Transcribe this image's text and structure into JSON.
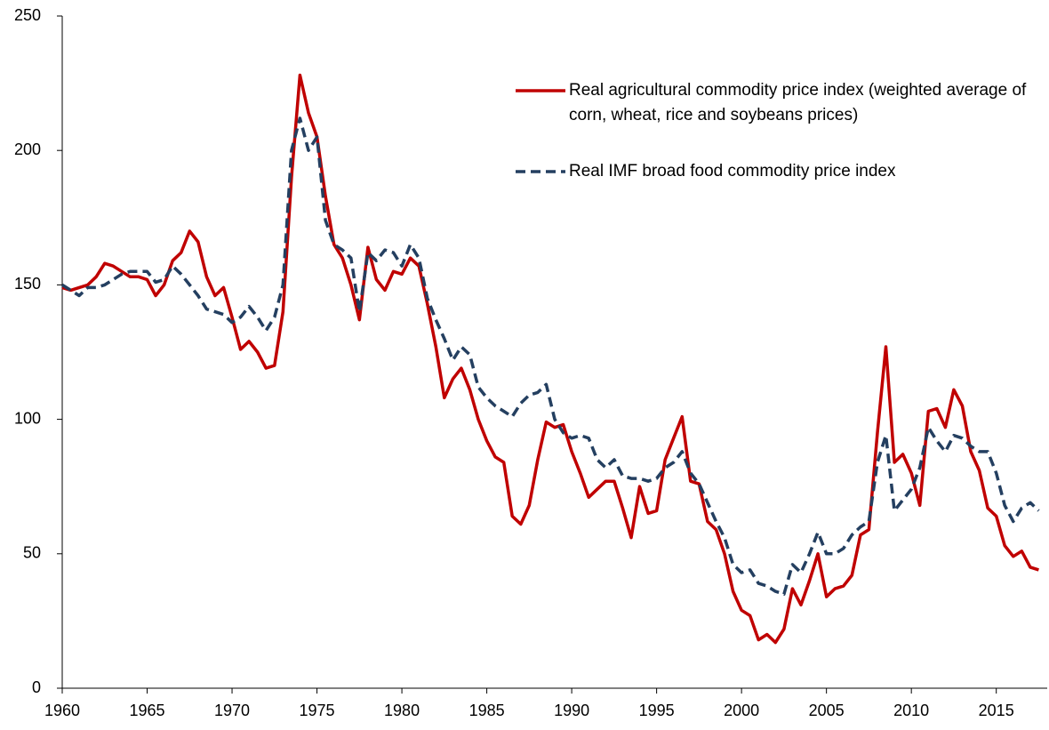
{
  "chart_data": {
    "type": "line",
    "x": [
      1960,
      1960.5,
      1961,
      1961.5,
      1962,
      1962.5,
      1963,
      1963.5,
      1964,
      1964.5,
      1965,
      1965.5,
      1966,
      1966.5,
      1967,
      1967.5,
      1968,
      1968.5,
      1969,
      1969.5,
      1970,
      1970.5,
      1971,
      1971.5,
      1972,
      1972.5,
      1973,
      1973.5,
      1974,
      1974.5,
      1975,
      1975.5,
      1976,
      1976.5,
      1977,
      1977.5,
      1978,
      1978.5,
      1979,
      1979.5,
      1980,
      1980.5,
      1981,
      1981.5,
      1982,
      1982.5,
      1983,
      1983.5,
      1984,
      1984.5,
      1985,
      1985.5,
      1986,
      1986.5,
      1987,
      1987.5,
      1988,
      1988.5,
      1989,
      1989.5,
      1990,
      1990.5,
      1991,
      1991.5,
      1992,
      1992.5,
      1993,
      1993.5,
      1994,
      1994.5,
      1995,
      1995.5,
      1996,
      1996.5,
      1997,
      1997.5,
      1998,
      1998.5,
      1999,
      1999.5,
      2000,
      2000.5,
      2001,
      2001.5,
      2002,
      2002.5,
      2003,
      2003.5,
      2004,
      2004.5,
      2005,
      2005.5,
      2006,
      2006.5,
      2007,
      2007.5,
      2008,
      2008.5,
      2009,
      2009.5,
      2010,
      2010.5,
      2011,
      2011.5,
      2012,
      2012.5,
      2013,
      2013.5,
      2014,
      2014.5,
      2015,
      2015.5,
      2016,
      2016.5,
      2017,
      2017.5
    ],
    "series": [
      {
        "name": "Real agricultural commodity price index (weighted average of corn, wheat, rice and soybeans prices)",
        "color": "#c00000",
        "dash": false,
        "values": [
          149,
          148,
          149,
          150,
          153,
          158,
          157,
          155,
          153,
          153,
          152,
          146,
          150,
          159,
          162,
          170,
          166,
          153,
          146,
          149,
          138,
          126,
          129,
          125,
          119,
          120,
          140,
          190,
          228,
          214,
          205,
          183,
          165,
          160,
          150,
          137,
          164,
          152,
          148,
          155,
          154,
          160,
          157,
          143,
          127,
          108,
          115,
          119,
          111,
          100,
          92,
          86,
          84,
          64,
          61,
          68,
          85,
          99,
          97,
          98,
          88,
          80,
          71,
          74,
          77,
          77,
          67,
          56,
          75,
          65,
          66,
          85,
          93,
          101,
          77,
          76,
          62,
          59,
          50,
          36,
          29,
          27,
          18,
          20,
          17,
          22,
          37,
          31,
          40,
          50,
          34,
          37,
          38,
          42,
          57,
          59,
          95,
          127,
          84,
          87,
          80,
          68,
          103,
          104,
          97,
          111,
          105,
          88,
          81,
          67,
          64,
          53,
          49,
          51,
          45,
          44
        ]
      },
      {
        "name": "Real IMF broad food commodity price index",
        "color": "#243f60",
        "dash": true,
        "values": [
          150,
          148,
          146,
          149,
          149,
          150,
          152,
          154,
          155,
          155,
          155,
          151,
          152,
          157,
          154,
          150,
          146,
          141,
          140,
          139,
          136,
          138,
          142,
          138,
          133,
          138,
          150,
          200,
          212,
          200,
          205,
          174,
          165,
          163,
          160,
          140,
          162,
          159,
          163,
          162,
          157,
          165,
          160,
          145,
          137,
          130,
          122,
          127,
          124,
          112,
          108,
          105,
          103,
          101,
          106,
          109,
          110,
          113,
          100,
          95,
          93,
          94,
          93,
          85,
          82,
          85,
          79,
          78,
          78,
          77,
          78,
          82,
          84,
          88,
          80,
          76,
          69,
          62,
          56,
          46,
          43,
          44,
          39,
          38,
          36,
          35,
          46,
          43,
          50,
          58,
          50,
          50,
          52,
          57,
          60,
          62,
          84,
          94,
          66,
          70,
          74,
          82,
          97,
          92,
          88,
          94,
          93,
          90,
          88,
          88,
          80,
          68,
          62,
          67,
          69,
          66
        ]
      }
    ],
    "xlim": [
      1960,
      2018
    ],
    "xticks": [
      1960,
      1965,
      1970,
      1975,
      1980,
      1985,
      1990,
      1995,
      2000,
      2005,
      2010,
      2015
    ],
    "ylim": [
      0,
      250
    ],
    "yticks": [
      0,
      50,
      100,
      150,
      200,
      250
    ],
    "grid": false,
    "legend": "top-right"
  }
}
